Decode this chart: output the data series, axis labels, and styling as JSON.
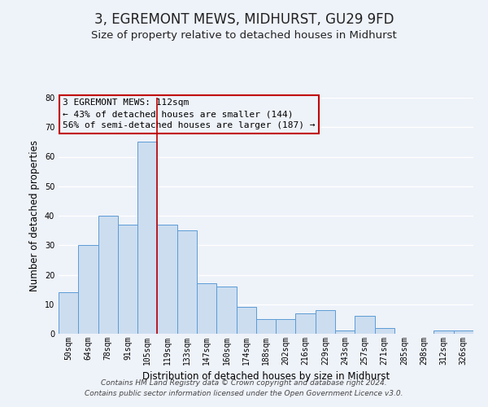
{
  "title": "3, EGREMONT MEWS, MIDHURST, GU29 9FD",
  "subtitle": "Size of property relative to detached houses in Midhurst",
  "xlabel": "Distribution of detached houses by size in Midhurst",
  "ylabel": "Number of detached properties",
  "bin_labels": [
    "50sqm",
    "64sqm",
    "78sqm",
    "91sqm",
    "105sqm",
    "119sqm",
    "133sqm",
    "147sqm",
    "160sqm",
    "174sqm",
    "188sqm",
    "202sqm",
    "216sqm",
    "229sqm",
    "243sqm",
    "257sqm",
    "271sqm",
    "285sqm",
    "298sqm",
    "312sqm",
    "326sqm"
  ],
  "bar_heights": [
    14,
    30,
    40,
    37,
    65,
    37,
    35,
    17,
    16,
    9,
    5,
    5,
    7,
    8,
    1,
    6,
    2,
    0,
    0,
    1,
    1
  ],
  "bar_color": "#ccddf0",
  "bar_edgecolor": "#5b9bd5",
  "property_line_color": "#c00000",
  "property_line_xindex": 4,
  "annotation_title": "3 EGREMONT MEWS: 112sqm",
  "annotation_line1": "← 43% of detached houses are smaller (144)",
  "annotation_line2": "56% of semi-detached houses are larger (187) →",
  "annotation_box_edgecolor": "#c00000",
  "ylim": [
    0,
    80
  ],
  "yticks": [
    0,
    10,
    20,
    30,
    40,
    50,
    60,
    70,
    80
  ],
  "footer_line1": "Contains HM Land Registry data © Crown copyright and database right 2024.",
  "footer_line2": "Contains public sector information licensed under the Open Government Licence v3.0.",
  "background_color": "#eef2f9",
  "grid_color": "#ffffff",
  "title_fontsize": 12,
  "subtitle_fontsize": 9.5,
  "axis_label_fontsize": 8.5,
  "tick_fontsize": 7,
  "annotation_fontsize": 8,
  "footer_fontsize": 6.5
}
